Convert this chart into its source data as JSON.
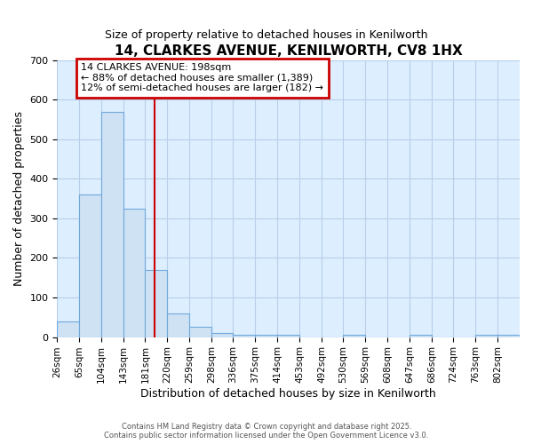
{
  "title": "14, CLARKES AVENUE, KENILWORTH, CV8 1HX",
  "subtitle": "Size of property relative to detached houses in Kenilworth",
  "xlabel": "Distribution of detached houses by size in Kenilworth",
  "ylabel": "Number of detached properties",
  "bin_edges": [
    26,
    65,
    104,
    143,
    181,
    220,
    259,
    298,
    336,
    375,
    414,
    453,
    492,
    530,
    569,
    608,
    647,
    686,
    724,
    763,
    802
  ],
  "bar_heights": [
    40,
    360,
    570,
    325,
    170,
    60,
    25,
    10,
    5,
    5,
    5,
    0,
    0,
    5,
    0,
    0,
    5,
    0,
    0,
    5,
    5
  ],
  "bar_color": "#cfe2f3",
  "bar_edge_color": "#6fa8dc",
  "property_line_x": 198,
  "property_line_color": "#cc0000",
  "annotation_title": "14 CLARKES AVENUE: 198sqm",
  "annotation_line1": "← 88% of detached houses are smaller (1,389)",
  "annotation_line2": "12% of semi-detached houses are larger (182) →",
  "annotation_box_color": "#cc0000",
  "ylim": [
    0,
    700
  ],
  "yticks": [
    0,
    100,
    200,
    300,
    400,
    500,
    600,
    700
  ],
  "grid_color": "#b8cfe8",
  "bg_color": "#ddeeff",
  "footer1": "Contains HM Land Registry data © Crown copyright and database right 2025.",
  "footer2": "Contains public sector information licensed under the Open Government Licence v3.0."
}
